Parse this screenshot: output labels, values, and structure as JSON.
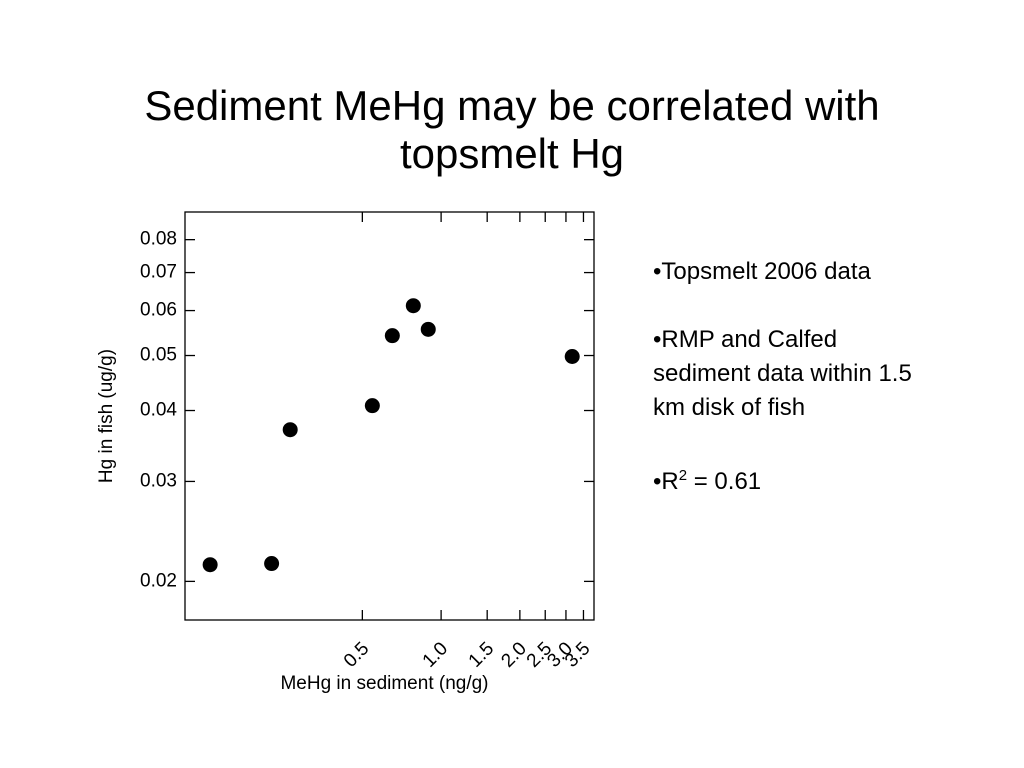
{
  "chart_data": {
    "type": "scatter",
    "title": "Sediment MeHg may be correlated with topsmelt Hg",
    "x_label": "MeHg in sediment (ng/g)",
    "y_label": "Hg in fish (ug/g)",
    "x_log": true,
    "y_log": true,
    "xlim": [
      0.105,
      3.84
    ],
    "ylim": [
      0.0171,
      0.0895
    ],
    "xticks": [
      0.5,
      {
        "value": 1,
        "label": "1.0"
      },
      1.5,
      {
        "value": 2,
        "label": "2.0"
      },
      2.5,
      {
        "value": 3,
        "label": "3.0"
      },
      3.5
    ],
    "yticks": [
      0.02,
      0.03,
      0.04,
      0.05,
      0.06,
      0.07,
      0.08
    ],
    "color": "#000000",
    "x": [
      0.131,
      0.225,
      0.265,
      0.546,
      0.651,
      0.783,
      0.893,
      3.17
    ],
    "values": [
      0.0214,
      0.0215,
      0.037,
      0.0408,
      0.0542,
      0.0612,
      0.0556,
      0.0498
    ],
    "annotations": [
      {
        "text": "•Topsmelt 2006 data"
      },
      {
        "text": "•RMP and Calfed sediment data within 1.5 km disk of fish"
      },
      {
        "text": "•R",
        "sup": "2",
        "after": " = 0.61"
      }
    ]
  }
}
